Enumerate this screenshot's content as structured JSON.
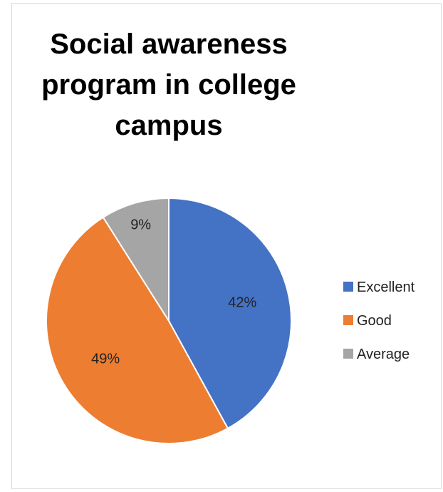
{
  "chart_data": {
    "type": "pie",
    "title": "Social awareness\nprogram in college\ncampus",
    "categories": [
      "Excellent",
      "Good",
      "Average"
    ],
    "values": [
      42,
      49,
      9
    ],
    "labels": [
      "42%",
      "49%",
      "9%"
    ],
    "colors": [
      "#4472c4",
      "#ed7d31",
      "#a5a5a5"
    ],
    "legend_position": "right"
  }
}
